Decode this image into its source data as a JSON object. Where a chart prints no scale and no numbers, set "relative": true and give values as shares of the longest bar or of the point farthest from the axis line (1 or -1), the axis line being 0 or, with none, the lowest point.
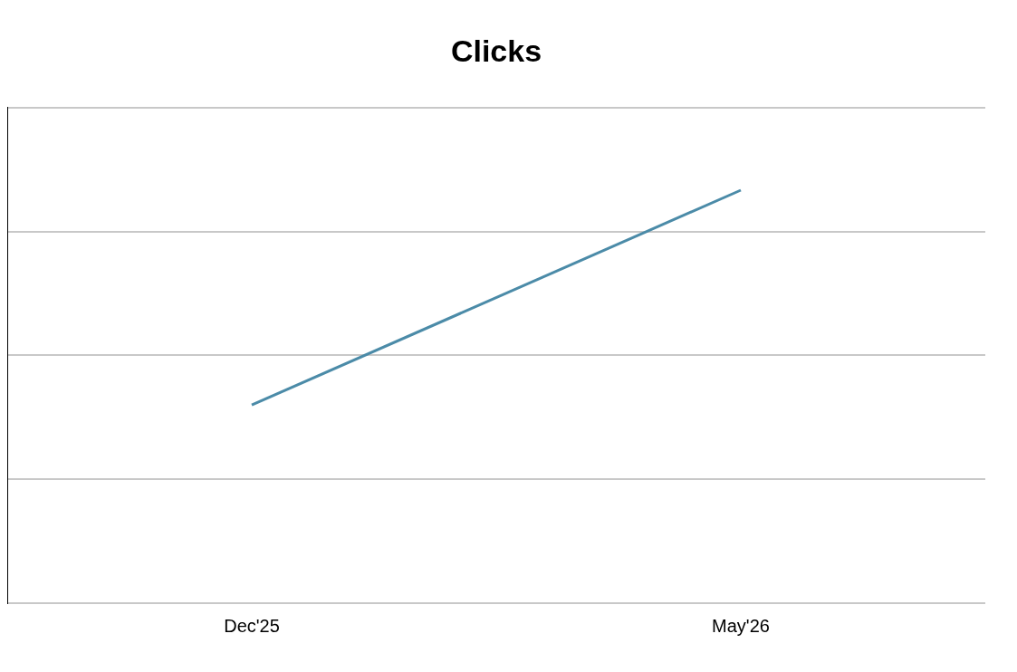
{
  "chart_data": {
    "type": "line",
    "title": "Clicks",
    "categories": [
      "Dec'25",
      "May'26"
    ],
    "series": [
      {
        "color": "#4b8ba8",
        "values": [
          0.48,
          1
        ]
      }
    ],
    "relative": true,
    "grid": "y",
    "legend": false,
    "marker": "none",
    "line_style": "solid"
  }
}
